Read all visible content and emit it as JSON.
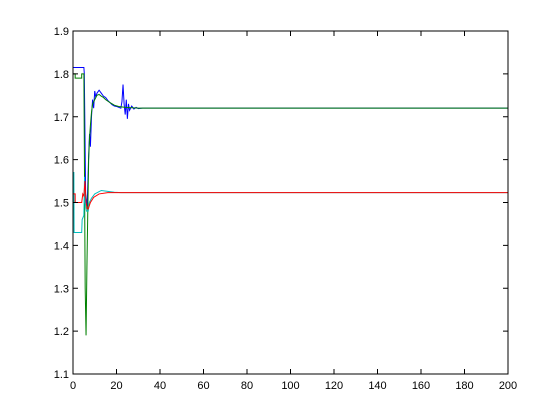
{
  "chart_data": {
    "type": "line",
    "title": "",
    "xlabel": "",
    "ylabel": "",
    "xlim": [
      0,
      200
    ],
    "ylim": [
      1.1,
      1.9
    ],
    "xticks": [
      0,
      20,
      40,
      60,
      80,
      100,
      120,
      140,
      160,
      180,
      200
    ],
    "yticks": [
      1.1,
      1.2,
      1.3,
      1.4,
      1.5,
      1.6,
      1.7,
      1.8,
      1.9
    ],
    "grid": false,
    "legend": "none",
    "series": [
      {
        "color": "#0000ff",
        "points": [
          [
            0,
            1.815
          ],
          [
            5,
            1.815
          ],
          [
            5.2,
            1.8
          ],
          [
            5.8,
            1.52
          ],
          [
            6.5,
            1.49
          ],
          [
            7.2,
            1.61
          ],
          [
            7.6,
            1.66
          ],
          [
            8,
            1.63
          ],
          [
            8.5,
            1.7
          ],
          [
            9,
            1.74
          ],
          [
            9.5,
            1.72
          ],
          [
            10,
            1.76
          ],
          [
            10.5,
            1.745
          ],
          [
            11,
            1.755
          ],
          [
            12,
            1.762
          ],
          [
            13,
            1.755
          ],
          [
            14,
            1.748
          ],
          [
            15,
            1.745
          ],
          [
            16,
            1.738
          ],
          [
            17,
            1.733
          ],
          [
            18,
            1.728
          ],
          [
            19,
            1.725
          ],
          [
            20,
            1.724
          ],
          [
            21,
            1.722
          ],
          [
            22,
            1.72
          ],
          [
            22.5,
            1.735
          ],
          [
            23,
            1.775
          ],
          [
            23.5,
            1.73
          ],
          [
            24,
            1.705
          ],
          [
            24.5,
            1.74
          ],
          [
            25,
            1.695
          ],
          [
            25.5,
            1.73
          ],
          [
            26,
            1.715
          ],
          [
            27,
            1.725
          ],
          [
            28,
            1.718
          ],
          [
            29,
            1.722
          ],
          [
            30,
            1.719
          ],
          [
            32,
            1.72
          ],
          [
            200,
            1.72
          ]
        ]
      },
      {
        "color": "#008000",
        "points": [
          [
            0,
            1.8
          ],
          [
            1,
            1.8
          ],
          [
            1,
            1.79
          ],
          [
            4,
            1.79
          ],
          [
            4,
            1.8
          ],
          [
            5,
            1.8
          ],
          [
            5.3,
            1.55
          ],
          [
            5.6,
            1.3
          ],
          [
            6,
            1.19
          ],
          [
            6.4,
            1.35
          ],
          [
            6.8,
            1.48
          ],
          [
            7.2,
            1.6
          ],
          [
            7.6,
            1.65
          ],
          [
            8,
            1.68
          ],
          [
            8.5,
            1.71
          ],
          [
            9,
            1.73
          ],
          [
            10,
            1.74
          ],
          [
            11,
            1.75
          ],
          [
            12,
            1.752
          ],
          [
            13,
            1.748
          ],
          [
            14,
            1.745
          ],
          [
            15,
            1.74
          ],
          [
            17,
            1.733
          ],
          [
            19,
            1.727
          ],
          [
            21,
            1.724
          ],
          [
            24,
            1.722
          ],
          [
            27,
            1.721
          ],
          [
            30,
            1.72
          ],
          [
            200,
            1.72
          ]
        ]
      },
      {
        "color": "#00bfbf",
        "points": [
          [
            0,
            1.57
          ],
          [
            0.4,
            1.57
          ],
          [
            0.5,
            1.43
          ],
          [
            4,
            1.43
          ],
          [
            4.2,
            1.46
          ],
          [
            5,
            1.47
          ],
          [
            5.3,
            1.56
          ],
          [
            5.6,
            1.5
          ],
          [
            6.2,
            1.48
          ],
          [
            7,
            1.48
          ],
          [
            7.5,
            1.5
          ],
          [
            8.5,
            1.51
          ],
          [
            10,
            1.52
          ],
          [
            13,
            1.528
          ],
          [
            16,
            1.526
          ],
          [
            19,
            1.524
          ],
          [
            22,
            1.523
          ],
          [
            30,
            1.523
          ],
          [
            200,
            1.523
          ]
        ]
      },
      {
        "color": "#ff0000",
        "points": [
          [
            0,
            1.52
          ],
          [
            1,
            1.52
          ],
          [
            1,
            1.5
          ],
          [
            4,
            1.5
          ],
          [
            4.5,
            1.52
          ],
          [
            5,
            1.515
          ],
          [
            5.5,
            1.55
          ],
          [
            6,
            1.5
          ],
          [
            6.5,
            1.485
          ],
          [
            7,
            1.485
          ],
          [
            8,
            1.5
          ],
          [
            9.5,
            1.512
          ],
          [
            12,
            1.52
          ],
          [
            16,
            1.523
          ],
          [
            22,
            1.523
          ],
          [
            30,
            1.523
          ],
          [
            200,
            1.523
          ]
        ]
      }
    ]
  }
}
